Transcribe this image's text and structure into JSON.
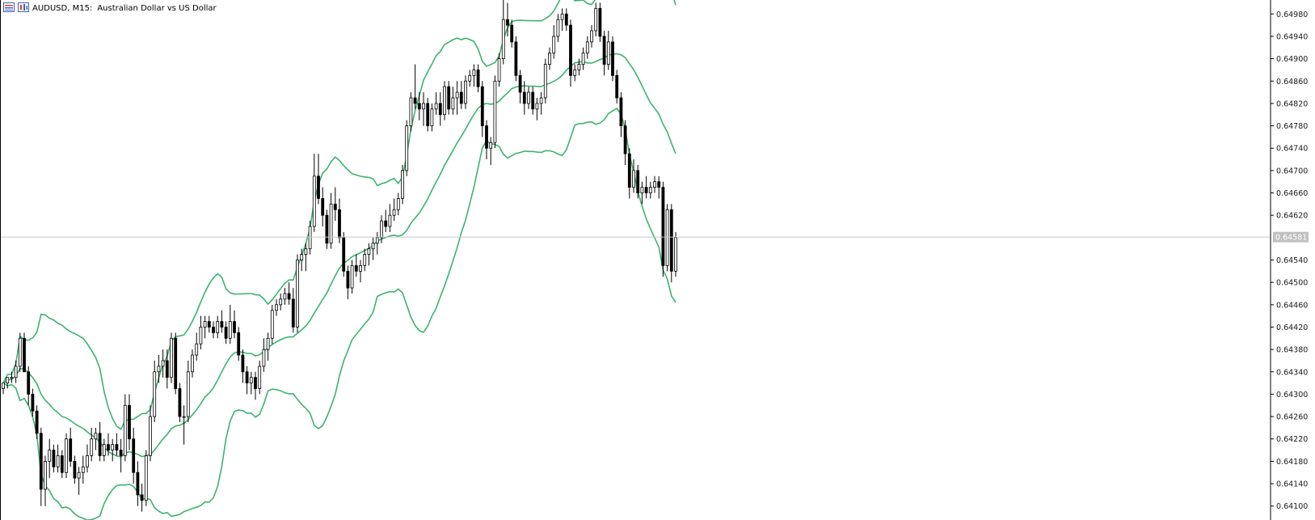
{
  "header": {
    "symbol_label": "AUDUSD, M15:",
    "description": "Australian Dollar vs US Dollar"
  },
  "colors": {
    "bollinger": "#3cb371",
    "bear_body": "#000000",
    "bull_body": "#ffffff",
    "candle_outline": "#000000",
    "current_price_line": "#c8c8c8",
    "price_tag_bg": "#c0c0c0"
  },
  "chart_data": {
    "type": "candlestick",
    "title": "AUDUSD, M15:  Australian Dollar vs US Dollar",
    "y_ticks": [
      "0.64980",
      "0.64940",
      "0.64900",
      "0.64860",
      "0.64820",
      "0.64780",
      "0.64740",
      "0.64700",
      "0.64660",
      "0.64620",
      "0.64540",
      "0.64500",
      "0.64460",
      "0.64420",
      "0.64380",
      "0.64340",
      "0.64300",
      "0.64260",
      "0.64220",
      "0.64180",
      "0.64140",
      "0.64100"
    ],
    "ylim": [
      0.64075,
      0.65005
    ],
    "current_price": "0.64581",
    "indicator": "Bollinger Bands",
    "grid": false,
    "candles_ohlc": [
      [
        0.6431,
        0.6432,
        0.643,
        0.6432
      ],
      [
        0.6432,
        0.6433,
        0.6431,
        0.6433
      ],
      [
        0.6433,
        0.6434,
        0.6432,
        0.6433
      ],
      [
        0.6433,
        0.6436,
        0.6432,
        0.6435
      ],
      [
        0.6435,
        0.6441,
        0.6434,
        0.644
      ],
      [
        0.644,
        0.6441,
        0.6434,
        0.6434
      ],
      [
        0.6434,
        0.6435,
        0.6428,
        0.643
      ],
      [
        0.643,
        0.6431,
        0.6426,
        0.6427
      ],
      [
        0.6427,
        0.6428,
        0.6422,
        0.6423
      ],
      [
        0.6423,
        0.6424,
        0.641,
        0.6413
      ],
      [
        0.6413,
        0.6419,
        0.641,
        0.6418
      ],
      [
        0.6418,
        0.6422,
        0.6415,
        0.642
      ],
      [
        0.642,
        0.6421,
        0.6416,
        0.6417
      ],
      [
        0.6417,
        0.6421,
        0.6416,
        0.6419
      ],
      [
        0.6419,
        0.642,
        0.6415,
        0.6416
      ],
      [
        0.6416,
        0.6423,
        0.6415,
        0.6422
      ],
      [
        0.6422,
        0.6424,
        0.6417,
        0.6418
      ],
      [
        0.6418,
        0.6419,
        0.6414,
        0.6415
      ],
      [
        0.6415,
        0.6417,
        0.6412,
        0.6416
      ],
      [
        0.6416,
        0.6419,
        0.6414,
        0.6417
      ],
      [
        0.6417,
        0.6421,
        0.6416,
        0.6419
      ],
      [
        0.6419,
        0.6424,
        0.6418,
        0.6422
      ],
      [
        0.6422,
        0.6424,
        0.642,
        0.6423
      ],
      [
        0.6423,
        0.6425,
        0.6418,
        0.6419
      ],
      [
        0.6419,
        0.6422,
        0.6418,
        0.6421
      ],
      [
        0.6421,
        0.6423,
        0.6419,
        0.642
      ],
      [
        0.642,
        0.6422,
        0.6418,
        0.6421
      ],
      [
        0.6421,
        0.6423,
        0.6419,
        0.642
      ],
      [
        0.642,
        0.6422,
        0.6416,
        0.6419
      ],
      [
        0.6419,
        0.643,
        0.6418,
        0.6428
      ],
      [
        0.6428,
        0.643,
        0.642,
        0.6422
      ],
      [
        0.6422,
        0.6424,
        0.6414,
        0.6416
      ],
      [
        0.6416,
        0.6418,
        0.641,
        0.6412
      ],
      [
        0.6412,
        0.6414,
        0.6409,
        0.6411
      ],
      [
        0.6411,
        0.642,
        0.641,
        0.6419
      ],
      [
        0.6419,
        0.6428,
        0.6418,
        0.6426
      ],
      [
        0.6426,
        0.6436,
        0.6425,
        0.6434
      ],
      [
        0.6434,
        0.6437,
        0.6432,
        0.6435
      ],
      [
        0.6435,
        0.6438,
        0.6433,
        0.6436
      ],
      [
        0.6436,
        0.6438,
        0.6431,
        0.6433
      ],
      [
        0.6433,
        0.6441,
        0.6432,
        0.644
      ],
      [
        0.644,
        0.6441,
        0.643,
        0.6431
      ],
      [
        0.6431,
        0.6432,
        0.6425,
        0.6426
      ],
      [
        0.6426,
        0.6428,
        0.6421,
        0.6426
      ],
      [
        0.6426,
        0.6436,
        0.6425,
        0.6434
      ],
      [
        0.6434,
        0.6438,
        0.6433,
        0.6437
      ],
      [
        0.6437,
        0.6441,
        0.6436,
        0.6439
      ],
      [
        0.6439,
        0.6444,
        0.6438,
        0.6442
      ],
      [
        0.6442,
        0.6444,
        0.644,
        0.6443
      ],
      [
        0.6443,
        0.6444,
        0.6441,
        0.6442
      ],
      [
        0.6442,
        0.6443,
        0.644,
        0.6441
      ],
      [
        0.6441,
        0.6444,
        0.644,
        0.6443
      ],
      [
        0.6443,
        0.6445,
        0.6441,
        0.6442
      ],
      [
        0.6442,
        0.6443,
        0.6439,
        0.644
      ],
      [
        0.644,
        0.6446,
        0.6439,
        0.6443
      ],
      [
        0.6443,
        0.6445,
        0.644,
        0.6441
      ],
      [
        0.6441,
        0.6442,
        0.6436,
        0.6437
      ],
      [
        0.6437,
        0.6438,
        0.6432,
        0.6434
      ],
      [
        0.6434,
        0.6435,
        0.643,
        0.6432
      ],
      [
        0.6432,
        0.6434,
        0.643,
        0.6433
      ],
      [
        0.6433,
        0.6434,
        0.6429,
        0.6431
      ],
      [
        0.6431,
        0.6436,
        0.643,
        0.6435
      ],
      [
        0.6435,
        0.644,
        0.6434,
        0.6438
      ],
      [
        0.6438,
        0.6441,
        0.6436,
        0.644
      ],
      [
        0.644,
        0.6446,
        0.6439,
        0.6445
      ],
      [
        0.6445,
        0.6447,
        0.6444,
        0.6446
      ],
      [
        0.6446,
        0.6448,
        0.6445,
        0.6447
      ],
      [
        0.6447,
        0.6449,
        0.6446,
        0.6448
      ],
      [
        0.6448,
        0.645,
        0.6446,
        0.6447
      ],
      [
        0.6447,
        0.6449,
        0.6441,
        0.6442
      ],
      [
        0.6442,
        0.6455,
        0.6441,
        0.6454
      ],
      [
        0.6454,
        0.6456,
        0.6452,
        0.6455
      ],
      [
        0.6455,
        0.6457,
        0.6452,
        0.6456
      ],
      [
        0.6456,
        0.6461,
        0.6455,
        0.646
      ],
      [
        0.646,
        0.6473,
        0.6459,
        0.6469
      ],
      [
        0.6469,
        0.6473,
        0.6464,
        0.6465
      ],
      [
        0.6465,
        0.6467,
        0.646,
        0.6462
      ],
      [
        0.6462,
        0.6463,
        0.6456,
        0.6457
      ],
      [
        0.6457,
        0.6466,
        0.6456,
        0.6464
      ],
      [
        0.6464,
        0.6467,
        0.6461,
        0.6463
      ],
      [
        0.6463,
        0.6465,
        0.6457,
        0.6458
      ],
      [
        0.6458,
        0.6459,
        0.6451,
        0.6452
      ],
      [
        0.6452,
        0.6453,
        0.6447,
        0.6449
      ],
      [
        0.6449,
        0.6454,
        0.6448,
        0.6453
      ],
      [
        0.6453,
        0.6455,
        0.6451,
        0.6452
      ],
      [
        0.6452,
        0.6454,
        0.645,
        0.6453
      ],
      [
        0.6453,
        0.6456,
        0.6452,
        0.6455
      ],
      [
        0.6455,
        0.6457,
        0.6453,
        0.6456
      ],
      [
        0.6456,
        0.6458,
        0.6454,
        0.6457
      ],
      [
        0.6457,
        0.6459,
        0.6455,
        0.6458
      ],
      [
        0.6458,
        0.6462,
        0.6457,
        0.6461
      ],
      [
        0.6461,
        0.6463,
        0.6459,
        0.646
      ],
      [
        0.646,
        0.6464,
        0.6459,
        0.6462
      ],
      [
        0.6462,
        0.6465,
        0.6461,
        0.6463
      ],
      [
        0.6463,
        0.6466,
        0.6462,
        0.6465
      ],
      [
        0.6465,
        0.6471,
        0.6464,
        0.647
      ],
      [
        0.647,
        0.6479,
        0.6469,
        0.6478
      ],
      [
        0.6478,
        0.6484,
        0.6477,
        0.6483
      ],
      [
        0.6483,
        0.6489,
        0.6481,
        0.6482
      ],
      [
        0.6482,
        0.6484,
        0.6479,
        0.6481
      ],
      [
        0.6481,
        0.6484,
        0.6478,
        0.6482
      ],
      [
        0.6482,
        0.6483,
        0.6477,
        0.6478
      ],
      [
        0.6478,
        0.6482,
        0.6477,
        0.6481
      ],
      [
        0.6481,
        0.6484,
        0.648,
        0.6482
      ],
      [
        0.6482,
        0.6484,
        0.6478,
        0.648
      ],
      [
        0.648,
        0.6486,
        0.6479,
        0.6485
      ],
      [
        0.6485,
        0.6486,
        0.648,
        0.6481
      ],
      [
        0.6481,
        0.6485,
        0.648,
        0.6483
      ],
      [
        0.6483,
        0.6486,
        0.648,
        0.6484
      ],
      [
        0.6484,
        0.6486,
        0.6481,
        0.6482
      ],
      [
        0.6482,
        0.6487,
        0.6481,
        0.6486
      ],
      [
        0.6486,
        0.6488,
        0.6485,
        0.6487
      ],
      [
        0.6487,
        0.6489,
        0.6485,
        0.6488
      ],
      [
        0.6488,
        0.6489,
        0.6484,
        0.6485
      ],
      [
        0.6485,
        0.6486,
        0.6476,
        0.6478
      ],
      [
        0.6478,
        0.6479,
        0.6472,
        0.6474
      ],
      [
        0.6474,
        0.6476,
        0.6471,
        0.6475
      ],
      [
        0.6475,
        0.6487,
        0.6474,
        0.6486
      ],
      [
        0.6486,
        0.6491,
        0.6485,
        0.649
      ],
      [
        0.649,
        0.6501,
        0.6489,
        0.6497
      ],
      [
        0.6497,
        0.65,
        0.6494,
        0.6496
      ],
      [
        0.6496,
        0.6497,
        0.6492,
        0.6493
      ],
      [
        0.6493,
        0.6494,
        0.6486,
        0.6487
      ],
      [
        0.6487,
        0.6488,
        0.6482,
        0.6484
      ],
      [
        0.6484,
        0.6486,
        0.648,
        0.6482
      ],
      [
        0.6482,
        0.6485,
        0.6481,
        0.6484
      ],
      [
        0.6484,
        0.6485,
        0.648,
        0.6481
      ],
      [
        0.6481,
        0.6483,
        0.6479,
        0.6482
      ],
      [
        0.6482,
        0.6484,
        0.648,
        0.6483
      ],
      [
        0.6483,
        0.649,
        0.6482,
        0.6489
      ],
      [
        0.6489,
        0.6492,
        0.6488,
        0.6491
      ],
      [
        0.6491,
        0.6496,
        0.649,
        0.6494
      ],
      [
        0.6494,
        0.6498,
        0.6493,
        0.6497
      ],
      [
        0.6497,
        0.6499,
        0.6495,
        0.6498
      ],
      [
        0.6498,
        0.6499,
        0.6495,
        0.6496
      ],
      [
        0.6496,
        0.6497,
        0.6485,
        0.6487
      ],
      [
        0.6487,
        0.6489,
        0.6486,
        0.6488
      ],
      [
        0.6488,
        0.649,
        0.6487,
        0.6489
      ],
      [
        0.6489,
        0.6492,
        0.6488,
        0.6491
      ],
      [
        0.6491,
        0.6494,
        0.649,
        0.6493
      ],
      [
        0.6493,
        0.6496,
        0.6492,
        0.6495
      ],
      [
        0.6495,
        0.65,
        0.6494,
        0.6499
      ],
      [
        0.6499,
        0.65,
        0.6493,
        0.6494
      ],
      [
        0.6494,
        0.6495,
        0.6487,
        0.6489
      ],
      [
        0.6489,
        0.6495,
        0.6488,
        0.6493
      ],
      [
        0.6493,
        0.6494,
        0.6486,
        0.6487
      ],
      [
        0.6487,
        0.6488,
        0.6482,
        0.6483
      ],
      [
        0.6483,
        0.6484,
        0.6476,
        0.6478
      ],
      [
        0.6478,
        0.6479,
        0.6471,
        0.6473
      ],
      [
        0.6473,
        0.6474,
        0.6465,
        0.6467
      ],
      [
        0.6467,
        0.6472,
        0.6466,
        0.647
      ],
      [
        0.647,
        0.6471,
        0.6465,
        0.6466
      ],
      [
        0.6466,
        0.6468,
        0.6464,
        0.6467
      ],
      [
        0.6467,
        0.6469,
        0.6465,
        0.6466
      ],
      [
        0.6466,
        0.6468,
        0.6465,
        0.6467
      ],
      [
        0.6467,
        0.6469,
        0.6466,
        0.6468
      ],
      [
        0.6468,
        0.6469,
        0.6465,
        0.6467
      ],
      [
        0.6467,
        0.6468,
        0.6451,
        0.6453
      ],
      [
        0.6453,
        0.6464,
        0.6452,
        0.6463
      ],
      [
        0.6463,
        0.6464,
        0.645,
        0.6452
      ],
      [
        0.6452,
        0.6459,
        0.6451,
        0.6458
      ]
    ]
  }
}
